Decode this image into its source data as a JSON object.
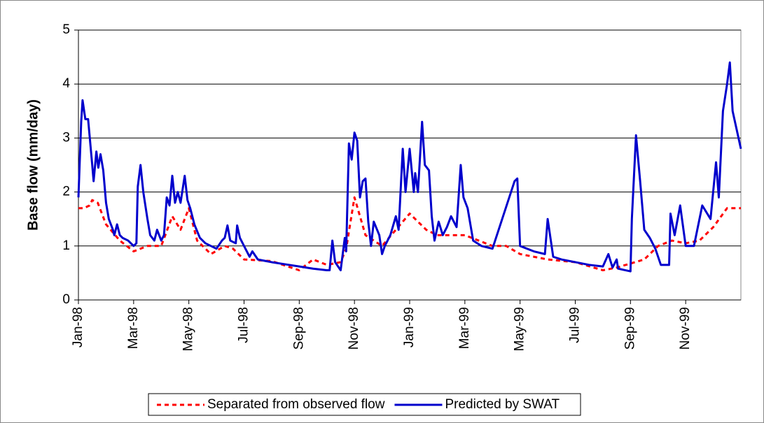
{
  "chart_data": {
    "type": "line",
    "ylabel": "Base flow (mm/day)",
    "xlim": [
      0,
      24
    ],
    "xticks": [
      {
        "value": 0,
        "label": "Jan-98"
      },
      {
        "value": 2,
        "label": "Mar-98"
      },
      {
        "value": 4,
        "label": "May-98"
      },
      {
        "value": 6,
        "label": "Jul-98"
      },
      {
        "value": 8,
        "label": "Sep-98"
      },
      {
        "value": 10,
        "label": "Nov-98"
      },
      {
        "value": 12,
        "label": "Jan-99"
      },
      {
        "value": 14,
        "label": "Mar-99"
      },
      {
        "value": 16,
        "label": "May-99"
      },
      {
        "value": 18,
        "label": "Jul-99"
      },
      {
        "value": 20,
        "label": "Sep-99"
      },
      {
        "value": 22,
        "label": "Nov-99"
      }
    ],
    "ylim": [
      0,
      5
    ],
    "yticks": [
      0,
      1,
      2,
      3,
      4,
      5
    ],
    "grid": true,
    "legend": "bottom",
    "series": [
      {
        "name": "Separated from observed flow",
        "color": "#ff0000",
        "dashed": true,
        "x": [
          0,
          0.2,
          0.4,
          0.5,
          0.7,
          1.0,
          1.5,
          2.0,
          2.5,
          3.0,
          3.4,
          3.7,
          4.0,
          4.3,
          4.8,
          5.3,
          5.6,
          6.0,
          7.0,
          8.0,
          8.5,
          9.0,
          9.5,
          9.7,
          10.0,
          10.4,
          11.0,
          12.0,
          12.6,
          13.0,
          14.0,
          14.5,
          15.0,
          15.5,
          16.0,
          17.0,
          18.0,
          19.0,
          19.5,
          20.5,
          21.0,
          21.5,
          22.0,
          22.5,
          23.0,
          23.5,
          24.0
        ],
        "values": [
          1.7,
          1.7,
          1.75,
          1.85,
          1.8,
          1.4,
          1.1,
          0.9,
          1.0,
          1.0,
          1.55,
          1.3,
          1.7,
          1.1,
          0.85,
          1.0,
          0.95,
          0.75,
          0.72,
          0.55,
          0.75,
          0.65,
          0.7,
          0.95,
          1.9,
          1.2,
          1.0,
          1.6,
          1.3,
          1.2,
          1.2,
          1.1,
          1.0,
          1.0,
          0.85,
          0.75,
          0.7,
          0.55,
          0.6,
          0.75,
          1.0,
          1.1,
          1.05,
          1.1,
          1.35,
          1.7,
          1.7
        ]
      },
      {
        "name": "Predicted by SWAT",
        "color": "#0000cc",
        "dashed": false,
        "x": [
          0,
          0.1,
          0.15,
          0.25,
          0.35,
          0.5,
          0.55,
          0.65,
          0.72,
          0.8,
          0.9,
          1.0,
          1.1,
          1.25,
          1.3,
          1.4,
          1.5,
          1.6,
          1.8,
          2.0,
          2.1,
          2.15,
          2.25,
          2.35,
          2.5,
          2.6,
          2.75,
          2.85,
          3.0,
          3.1,
          3.2,
          3.3,
          3.4,
          3.5,
          3.6,
          3.7,
          3.85,
          3.95,
          4.05,
          4.2,
          4.4,
          4.6,
          5.0,
          5.2,
          5.3,
          5.4,
          5.5,
          5.7,
          5.75,
          5.85,
          6.0,
          6.2,
          6.3,
          6.5,
          7.0,
          7.5,
          8.0,
          8.5,
          9.0,
          9.1,
          9.2,
          9.3,
          9.5,
          9.65,
          9.7,
          9.8,
          9.9,
          10.0,
          10.1,
          10.2,
          10.3,
          10.4,
          10.5,
          10.6,
          10.7,
          10.9,
          11.0,
          11.1,
          11.3,
          11.5,
          11.6,
          11.75,
          11.85,
          12.0,
          12.15,
          12.2,
          12.3,
          12.45,
          12.55,
          12.7,
          12.8,
          12.9,
          13.05,
          13.2,
          13.35,
          13.5,
          13.7,
          13.85,
          13.95,
          14.1,
          14.3,
          14.6,
          15.0,
          15.8,
          15.9,
          16.0,
          16.5,
          16.9,
          17.0,
          17.2,
          17.5,
          18.0,
          18.5,
          19.0,
          19.2,
          19.35,
          19.5,
          19.55,
          20.0,
          20.05,
          20.2,
          20.35,
          20.5,
          20.7,
          20.9,
          21.1,
          21.4,
          21.45,
          21.6,
          21.8,
          22.0,
          22.3,
          22.6,
          22.9,
          23.1,
          23.2,
          23.35,
          23.5,
          23.6,
          23.7,
          24.0
        ],
        "values": [
          1.9,
          3.3,
          3.7,
          3.35,
          3.35,
          2.5,
          2.2,
          2.75,
          2.45,
          2.7,
          2.4,
          1.8,
          1.5,
          1.3,
          1.2,
          1.4,
          1.2,
          1.15,
          1.1,
          1.0,
          1.05,
          2.1,
          2.5,
          2.0,
          1.5,
          1.2,
          1.1,
          1.3,
          1.1,
          1.2,
          1.9,
          1.75,
          2.3,
          1.8,
          2.0,
          1.8,
          2.3,
          1.85,
          1.7,
          1.4,
          1.15,
          1.05,
          0.95,
          1.1,
          1.15,
          1.38,
          1.1,
          1.05,
          1.38,
          1.15,
          1.0,
          0.8,
          0.9,
          0.75,
          0.7,
          0.66,
          0.62,
          0.58,
          0.55,
          0.55,
          1.1,
          0.7,
          0.55,
          1.15,
          0.9,
          2.9,
          2.6,
          3.1,
          2.95,
          1.9,
          2.2,
          2.25,
          1.45,
          1.0,
          1.45,
          1.2,
          0.85,
          1.0,
          1.2,
          1.55,
          1.3,
          2.8,
          2.0,
          2.8,
          2.0,
          2.35,
          2.0,
          3.3,
          2.5,
          2.4,
          1.55,
          1.1,
          1.45,
          1.2,
          1.35,
          1.55,
          1.35,
          2.5,
          1.9,
          1.7,
          1.1,
          1.0,
          0.95,
          2.2,
          2.25,
          1.0,
          0.9,
          0.85,
          1.5,
          0.8,
          0.75,
          0.7,
          0.65,
          0.62,
          0.85,
          0.6,
          0.75,
          0.58,
          0.53,
          1.5,
          3.05,
          2.2,
          1.3,
          1.15,
          0.95,
          0.65,
          0.65,
          1.6,
          1.2,
          1.75,
          1.0,
          1.0,
          1.75,
          1.5,
          2.55,
          1.9,
          3.5,
          4.0,
          4.4,
          3.5,
          2.8
        ]
      }
    ]
  }
}
